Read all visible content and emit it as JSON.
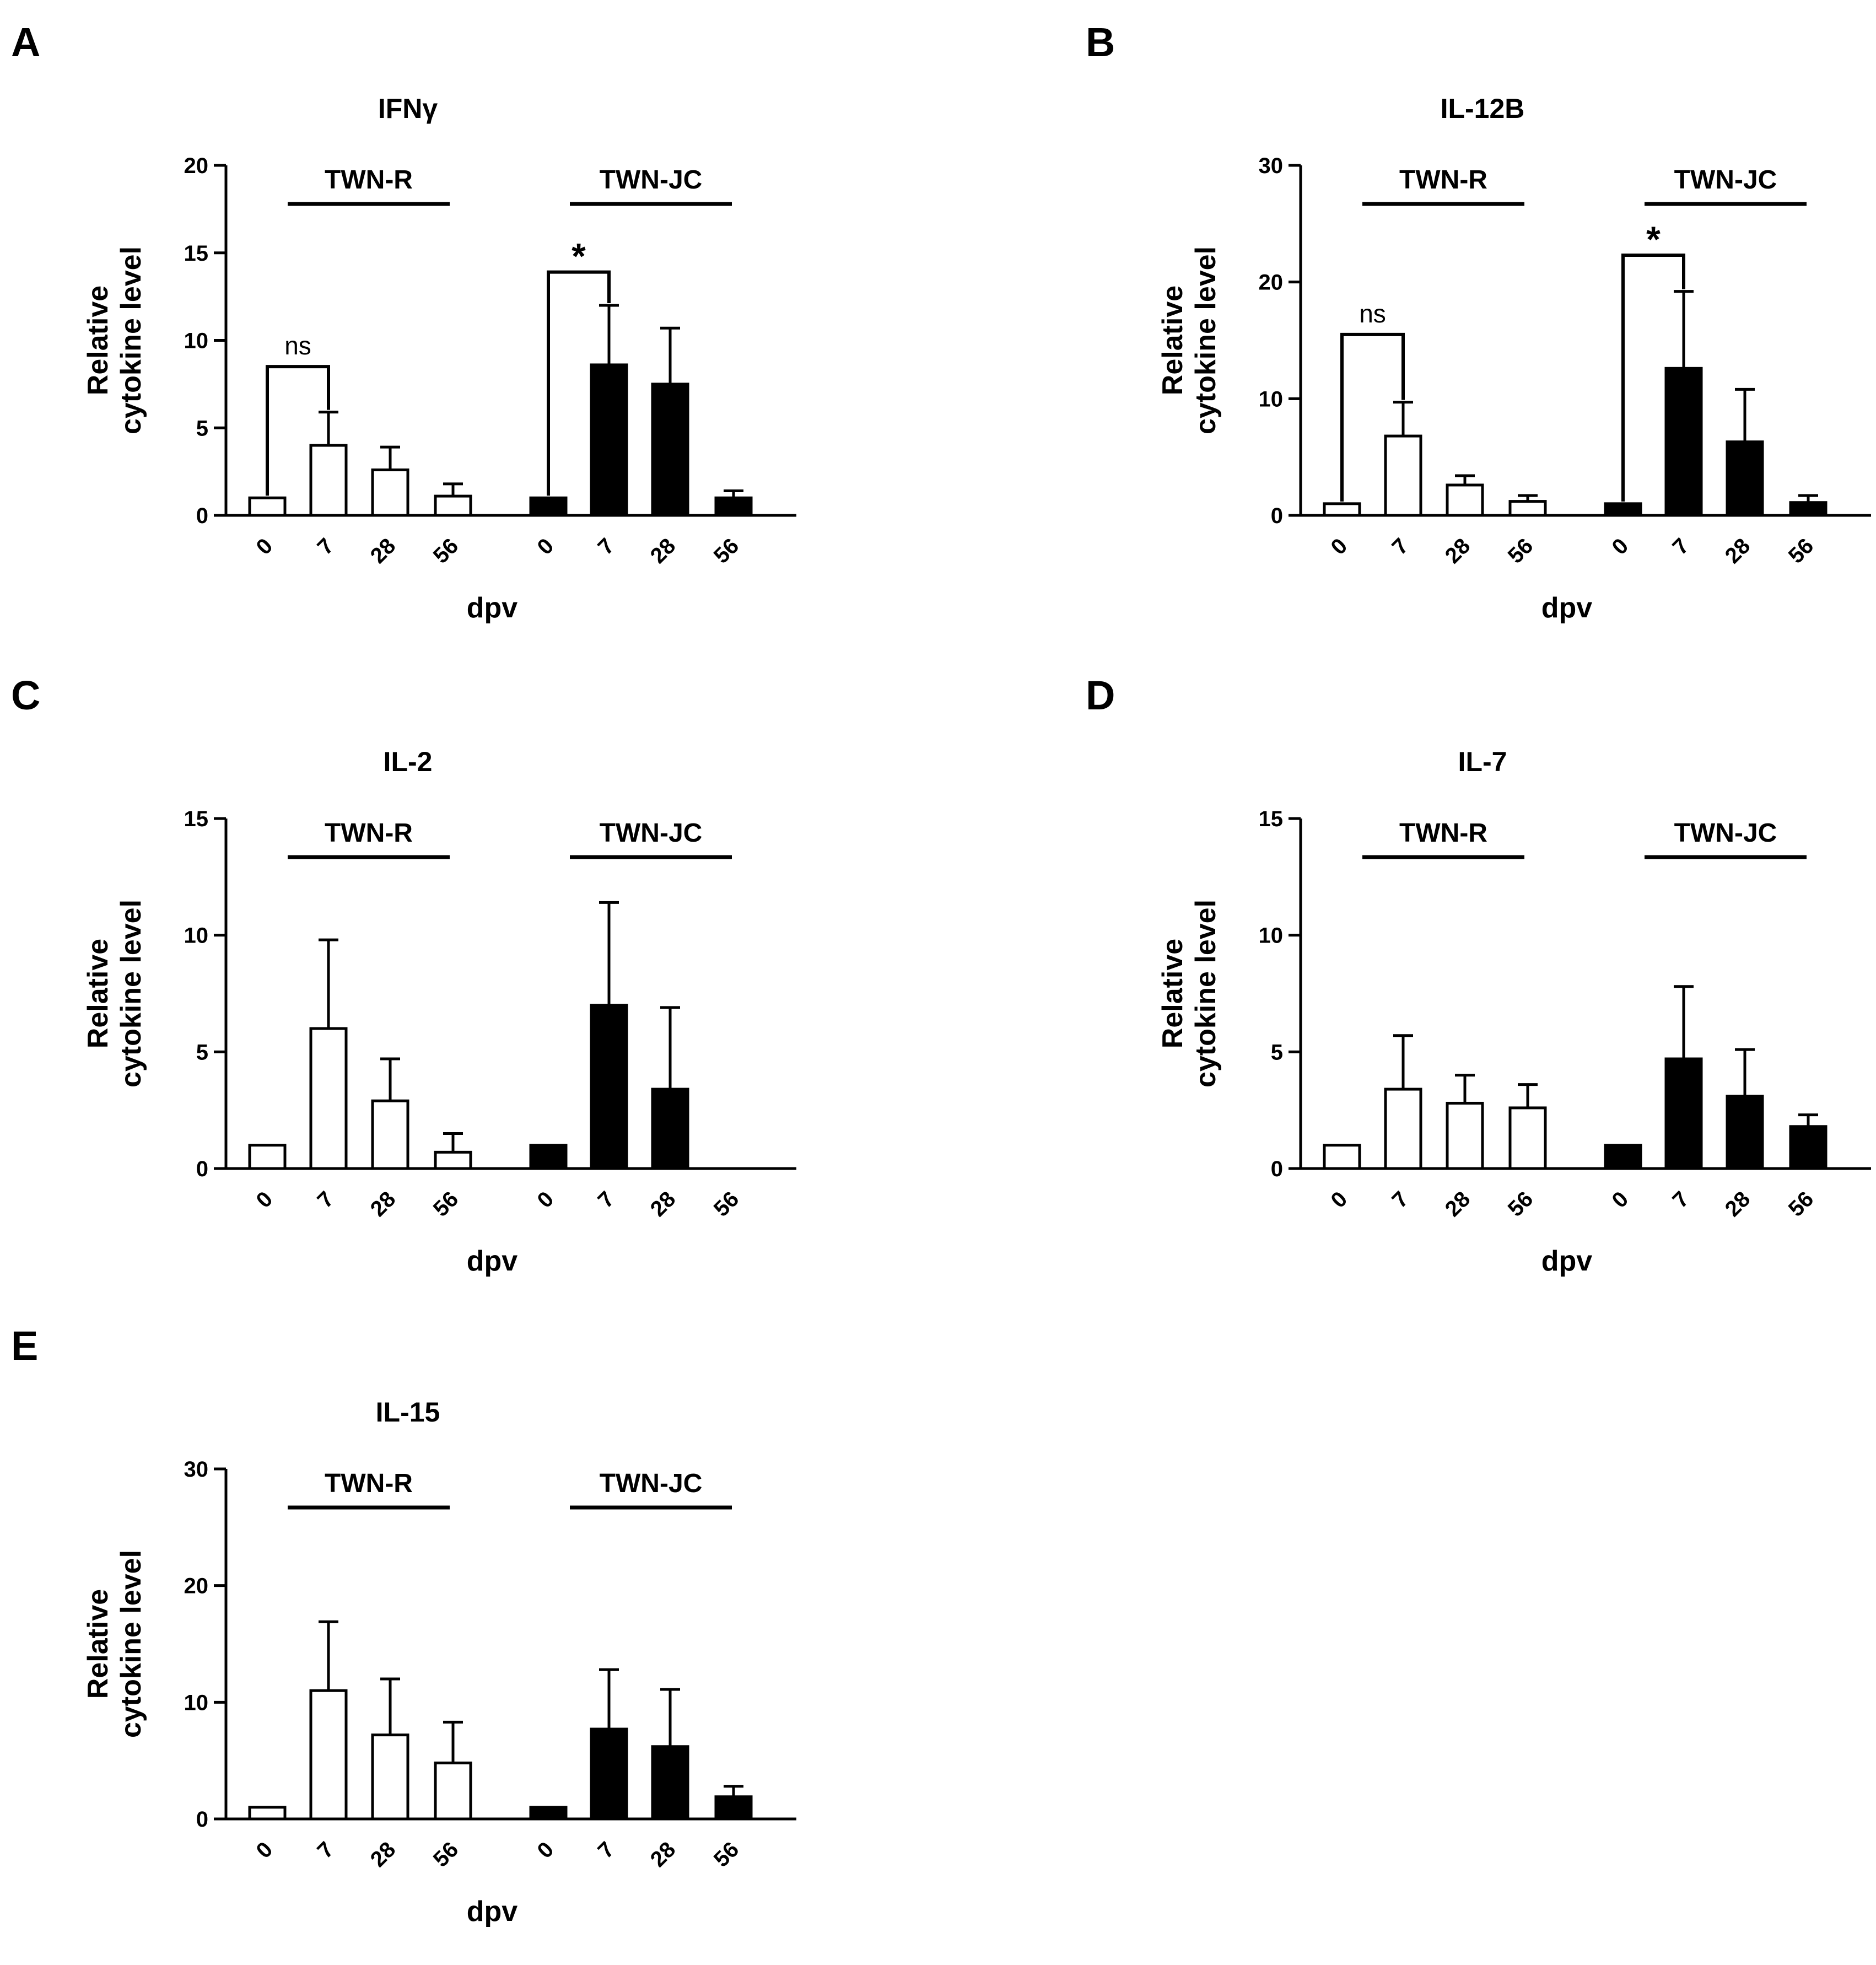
{
  "chart_data": [
    {
      "panel": "A",
      "type": "bar",
      "title": "IFNγ",
      "xlabel": "dpv",
      "ylabel": [
        "Relative",
        "cytokine level"
      ],
      "ylim": [
        0,
        20
      ],
      "yticks": [
        "0",
        "5",
        "10",
        "15",
        "20"
      ],
      "groups": [
        "TWN-R",
        "TWN-JC"
      ],
      "categories": [
        "0",
        "7",
        "28",
        "56"
      ],
      "series": [
        {
          "name": "TWN-R",
          "fill": "#ffffff",
          "values": [
            1.0,
            4.0,
            2.6,
            1.1
          ],
          "errors": [
            0.0,
            1.9,
            1.3,
            0.7
          ]
        },
        {
          "name": "TWN-JC",
          "fill": "#000000",
          "values": [
            1.0,
            8.6,
            7.5,
            1.0
          ],
          "errors": [
            0.0,
            3.4,
            3.2,
            0.4
          ]
        }
      ],
      "significance": [
        {
          "group": "TWN-R",
          "from": "0",
          "to": "7",
          "label": "ns",
          "level": 8.5
        },
        {
          "group": "TWN-JC",
          "from": "0",
          "to": "7",
          "label": "*",
          "level": 13.9
        }
      ]
    },
    {
      "panel": "B",
      "type": "bar",
      "title": "IL-12B",
      "xlabel": "dpv",
      "ylabel": [
        "Relative",
        "cytokine level"
      ],
      "ylim": [
        0,
        30
      ],
      "yticks": [
        "0",
        "10",
        "20",
        "30"
      ],
      "groups": [
        "TWN-R",
        "TWN-JC"
      ],
      "categories": [
        "0",
        "7",
        "28",
        "56"
      ],
      "series": [
        {
          "name": "TWN-R",
          "fill": "#ffffff",
          "values": [
            1.0,
            6.8,
            2.6,
            1.2
          ],
          "errors": [
            0.0,
            2.9,
            0.8,
            0.5
          ]
        },
        {
          "name": "TWN-JC",
          "fill": "#000000",
          "values": [
            1.0,
            12.6,
            6.3,
            1.1
          ],
          "errors": [
            0.0,
            6.6,
            4.5,
            0.6
          ]
        }
      ],
      "significance": [
        {
          "group": "TWN-R",
          "from": "0",
          "to": "7",
          "label": "ns",
          "level": 15.5
        },
        {
          "group": "TWN-JC",
          "from": "0",
          "to": "7",
          "label": "*",
          "level": 22.3
        }
      ]
    },
    {
      "panel": "C",
      "type": "bar",
      "title": "IL-2",
      "xlabel": "dpv",
      "ylabel": [
        "Relative",
        "cytokine level"
      ],
      "ylim": [
        0,
        15
      ],
      "yticks": [
        "0",
        "5",
        "10",
        "15"
      ],
      "groups": [
        "TWN-R",
        "TWN-JC"
      ],
      "categories": [
        "0",
        "7",
        "28",
        "56"
      ],
      "series": [
        {
          "name": "TWN-R",
          "fill": "#ffffff",
          "values": [
            1.0,
            6.0,
            2.9,
            0.7
          ],
          "errors": [
            0.0,
            3.8,
            1.8,
            0.8
          ]
        },
        {
          "name": "TWN-JC",
          "fill": "#000000",
          "values": [
            1.0,
            7.0,
            3.4,
            0.0
          ],
          "errors": [
            0.0,
            4.4,
            3.5,
            0.0
          ]
        }
      ],
      "significance": []
    },
    {
      "panel": "D",
      "type": "bar",
      "title": "IL-7",
      "xlabel": "dpv",
      "ylabel": [
        "Relative",
        "cytokine level"
      ],
      "ylim": [
        0,
        15
      ],
      "yticks": [
        "0",
        "5",
        "10",
        "15"
      ],
      "groups": [
        "TWN-R",
        "TWN-JC"
      ],
      "categories": [
        "0",
        "7",
        "28",
        "56"
      ],
      "series": [
        {
          "name": "TWN-R",
          "fill": "#ffffff",
          "values": [
            1.0,
            3.4,
            2.8,
            2.6
          ],
          "errors": [
            0.0,
            2.3,
            1.2,
            1.0
          ]
        },
        {
          "name": "TWN-JC",
          "fill": "#000000",
          "values": [
            1.0,
            4.7,
            3.1,
            1.8
          ],
          "errors": [
            0.0,
            3.1,
            2.0,
            0.5
          ]
        }
      ],
      "significance": []
    },
    {
      "panel": "E",
      "type": "bar",
      "title": "IL-15",
      "xlabel": "dpv",
      "ylabel": [
        "Relative",
        "cytokine level"
      ],
      "ylim": [
        0,
        30
      ],
      "yticks": [
        "0",
        "10",
        "20",
        "30"
      ],
      "groups": [
        "TWN-R",
        "TWN-JC"
      ],
      "categories": [
        "0",
        "7",
        "28",
        "56"
      ],
      "series": [
        {
          "name": "TWN-R",
          "fill": "#ffffff",
          "values": [
            1.0,
            11.0,
            7.2,
            4.8
          ],
          "errors": [
            0.0,
            5.9,
            4.8,
            3.5
          ]
        },
        {
          "name": "TWN-JC",
          "fill": "#000000",
          "values": [
            1.0,
            7.7,
            6.2,
            1.9
          ],
          "errors": [
            0.0,
            5.1,
            4.9,
            0.9
          ]
        }
      ],
      "significance": []
    }
  ]
}
